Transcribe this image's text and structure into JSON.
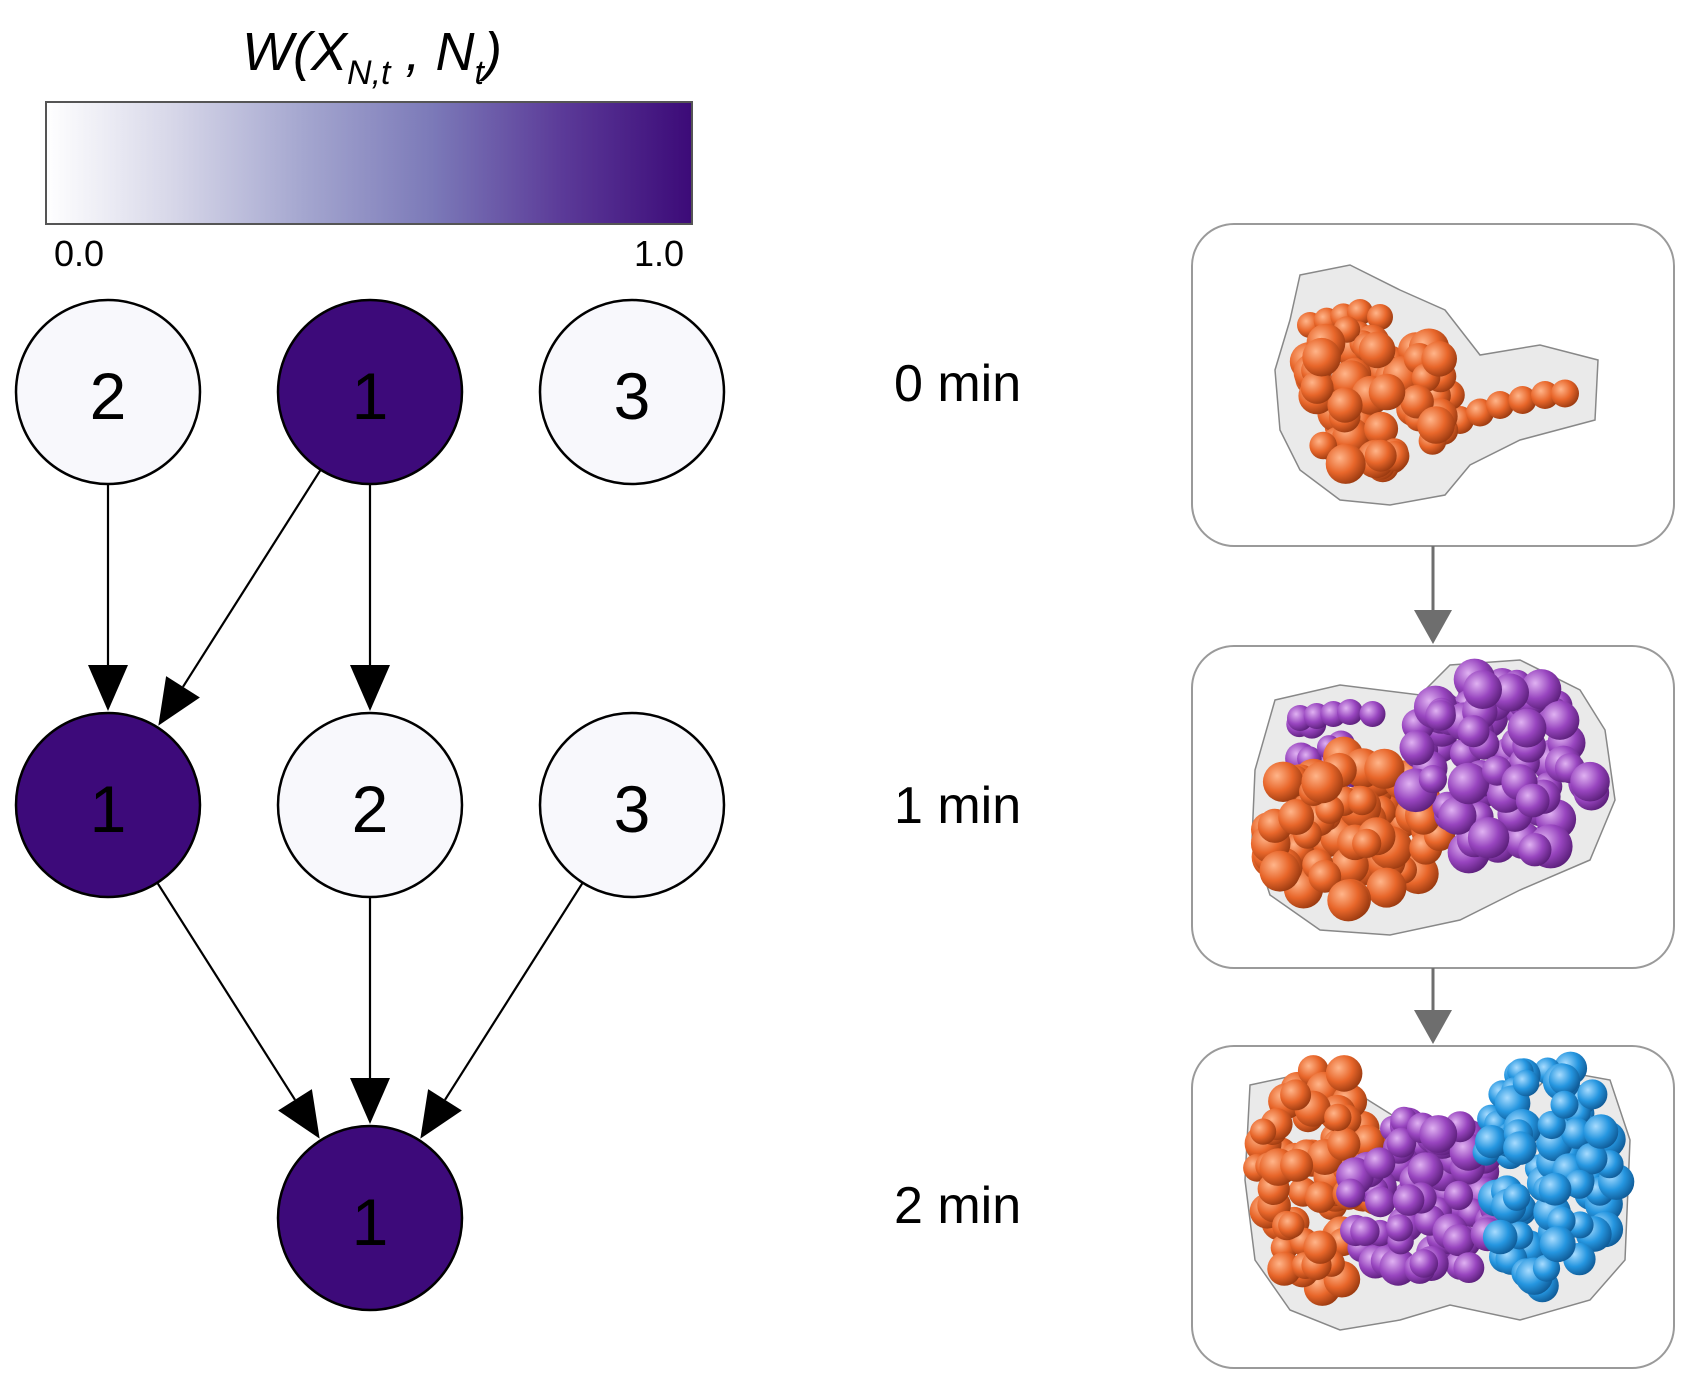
{
  "colorbar": {
    "title_main": "W(X",
    "title_sub1": "N,t",
    "title_mid": " , N",
    "title_sub2": "t",
    "title_end": ")",
    "min_label": "0.0",
    "max_label": "1.0",
    "colors": [
      "#ffffff",
      "#d6d6e8",
      "#a4a6cf",
      "#7b79b8",
      "#5b3a98",
      "#3c0a78"
    ]
  },
  "colors": {
    "node_high": "#3d0a7a",
    "node_low": "#f8f8fc",
    "edge": "#000000",
    "box_border": "#9a9a9a",
    "box_arrow": "#6e6e6e",
    "orange": "#e8662a",
    "purple": "#9845bf",
    "blue": "#2596e0",
    "density": "#d4d4d4"
  },
  "graph": {
    "layers": [
      {
        "nodes": [
          {
            "label": "2",
            "weight": 0.0
          },
          {
            "label": "1",
            "weight": 1.0
          },
          {
            "label": "3",
            "weight": 0.0
          }
        ]
      },
      {
        "nodes": [
          {
            "label": "1",
            "weight": 1.0
          },
          {
            "label": "2",
            "weight": 0.0
          },
          {
            "label": "3",
            "weight": 0.0
          }
        ]
      },
      {
        "nodes": [
          {
            "label": "1",
            "weight": 1.0
          }
        ]
      }
    ],
    "edges": [
      {
        "from": "0-0",
        "to": "1-0"
      },
      {
        "from": "0-1",
        "to": "1-0"
      },
      {
        "from": "0-1",
        "to": "1-1"
      },
      {
        "from": "1-0",
        "to": "2-0"
      },
      {
        "from": "1-1",
        "to": "2-0"
      },
      {
        "from": "1-2",
        "to": "2-0"
      }
    ]
  },
  "timeline": [
    {
      "label": "0 min",
      "icon": "orange-bead-structure-icon"
    },
    {
      "label": "1 min",
      "icon": "orange-purple-bead-structure-icon"
    },
    {
      "label": "2 min",
      "icon": "orange-purple-blue-bead-structure-icon"
    }
  ]
}
